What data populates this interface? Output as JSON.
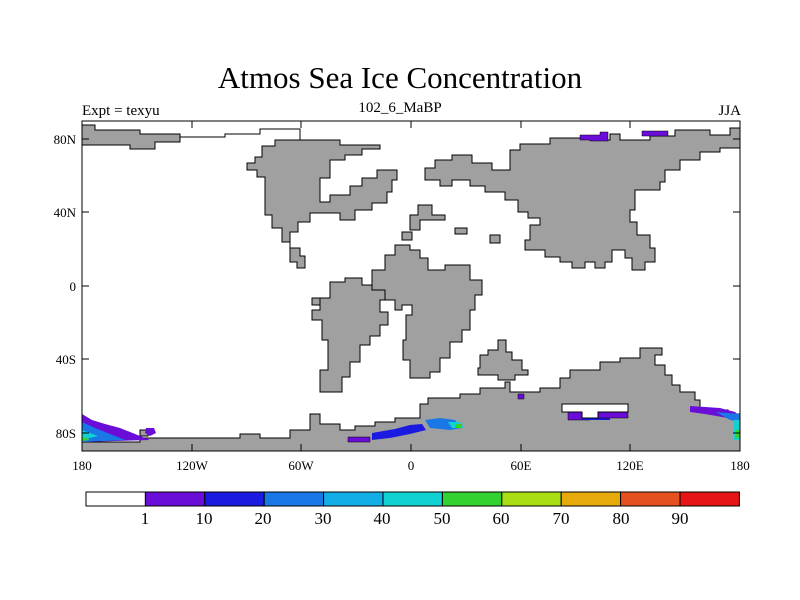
{
  "header": {
    "title": "Atmos Sea Ice Concentration",
    "left_label": "Expt = texyu",
    "center_label": "102_6_MaBP",
    "right_label": "JJA"
  },
  "axes": {
    "lon_ticks": [
      "180",
      "120W",
      "60W",
      "0",
      "60E",
      "120E",
      "180"
    ],
    "lat_ticks": [
      "80N",
      "40N",
      "0",
      "40S",
      "80S"
    ]
  },
  "colorbar": {
    "labels": [
      "1",
      "10",
      "20",
      "30",
      "40",
      "50",
      "60",
      "70",
      "80",
      "90"
    ],
    "colors": [
      "#ffffff",
      "#6a0dd9",
      "#1a1ae0",
      "#1a78e6",
      "#14aee6",
      "#10d2d2",
      "#32d232",
      "#aade14",
      "#e6aa0a",
      "#e6501e",
      "#e61414"
    ]
  },
  "colors": {
    "land": "#a0a0a0",
    "ice_low": "#6a0dd9",
    "ice_mid": "#1a1ae0",
    "ice_high": "#14aee6",
    "ice_edge": "#32d232"
  }
}
